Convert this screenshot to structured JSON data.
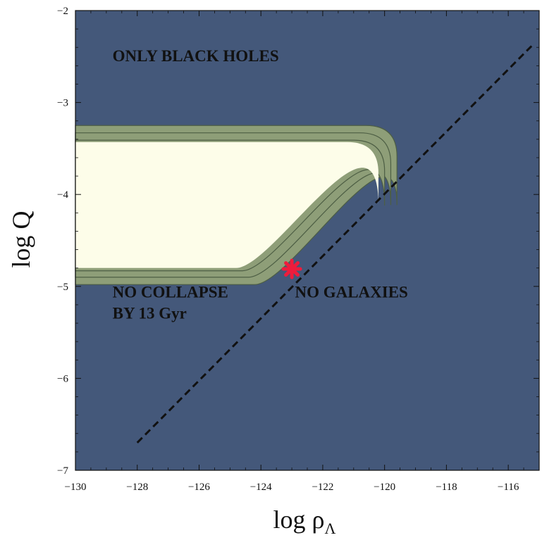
{
  "chart_data": {
    "type": "contour",
    "xlabel_main": "log ρ",
    "xlabel_sub": "Λ",
    "ylabel": "log Q",
    "xlim": [
      -130,
      -115
    ],
    "ylim": [
      -7,
      -2
    ],
    "x_ticks": [
      -130,
      -128,
      -126,
      -124,
      -122,
      -120,
      -118,
      -116
    ],
    "x_tick_labels": [
      "−130",
      "−128",
      "−126",
      "−124",
      "−122",
      "−120",
      "−118",
      "−116"
    ],
    "y_ticks": [
      -7,
      -6,
      -5,
      -4,
      -3,
      -2
    ],
    "y_tick_labels": [
      "−7",
      "−6",
      "−5",
      "−4",
      "−3",
      "−2"
    ],
    "colors": {
      "background": "#44587a",
      "band": "#8e9e78",
      "inner": "#fdfde9",
      "contour_line": "#4d5e44",
      "marker": "#ee1c3c",
      "dashed_line": "#111111"
    },
    "regions": [
      {
        "label": "ONLY BLACK HOLES",
        "x": -128.8,
        "y": -2.55,
        "lines": [
          "ONLY BLACK HOLES"
        ]
      },
      {
        "label": "NO COLLAPSE BY 13 Gyr",
        "x": -128.8,
        "y": -5.12,
        "lines": [
          "NO COLLAPSE",
          "BY 13 Gyr"
        ]
      },
      {
        "label": "NO GALAXIES",
        "x": -122.9,
        "y": -5.12,
        "lines": [
          "NO GALAXIES"
        ]
      }
    ],
    "dashed_line": {
      "x": [
        -128,
        -115.2
      ],
      "y": [
        -6.7,
        -2.37
      ]
    },
    "contours": [
      {
        "name": "band-outer",
        "top": -3.25,
        "bottom": -4.98,
        "right": -119.6
      },
      {
        "name": "band-mid",
        "top": -3.33,
        "bottom": -4.9,
        "right": -119.8
      },
      {
        "name": "band-inner",
        "top": -3.41,
        "bottom": -4.83,
        "right": -120.0
      },
      {
        "name": "fill",
        "top": -3.43,
        "bottom": -4.8,
        "right": -120.2
      }
    ],
    "marker": {
      "x": -123.0,
      "y": -4.81,
      "symbol": "asterisk"
    }
  }
}
